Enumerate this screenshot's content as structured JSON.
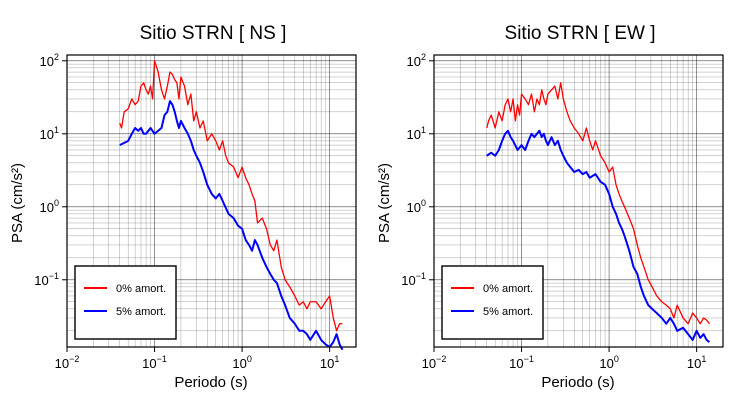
{
  "colors": {
    "series_0pct": "#ff0000",
    "series_5pct": "#0000ff",
    "grid": "#000000",
    "frame": "#000000"
  },
  "chart_data": [
    {
      "type": "line",
      "title": "Sitio STRN [ NS ]",
      "xlabel": "Periodo (s)",
      "ylabel": "PSA (cm/s²)",
      "xscale": "log",
      "yscale": "log",
      "xlim": [
        0.01,
        20
      ],
      "ylim": [
        0.012,
        120
      ],
      "grid": true,
      "legend_position": "bottom-left",
      "x_ticks": [
        {
          "base": "10",
          "exp": "−2",
          "value": 0.01
        },
        {
          "base": "10",
          "exp": "−1",
          "value": 0.1
        },
        {
          "base": "10",
          "exp": "0",
          "value": 1
        },
        {
          "base": "10",
          "exp": "1",
          "value": 10
        }
      ],
      "y_ticks": [
        {
          "base": "10",
          "exp": "−1",
          "value": 0.1
        },
        {
          "base": "10",
          "exp": "0",
          "value": 1
        },
        {
          "base": "10",
          "exp": "1",
          "value": 10
        },
        {
          "base": "10",
          "exp": "2",
          "value": 100
        }
      ],
      "series": [
        {
          "name": "0% amort.",
          "color": "#ff0000",
          "x": [
            0.04,
            0.042,
            0.045,
            0.05,
            0.055,
            0.06,
            0.065,
            0.07,
            0.075,
            0.08,
            0.085,
            0.09,
            0.095,
            0.1,
            0.11,
            0.12,
            0.13,
            0.14,
            0.15,
            0.16,
            0.17,
            0.18,
            0.19,
            0.2,
            0.22,
            0.24,
            0.26,
            0.28,
            0.3,
            0.33,
            0.36,
            0.4,
            0.45,
            0.5,
            0.55,
            0.6,
            0.65,
            0.7,
            0.8,
            0.9,
            1.0,
            1.1,
            1.2,
            1.3,
            1.4,
            1.5,
            1.7,
            1.9,
            2.1,
            2.3,
            2.5,
            2.8,
            3.1,
            3.5,
            4.0,
            4.5,
            5.0,
            5.5,
            6.0,
            7.0,
            8.0,
            9.0,
            10.0,
            11.0,
            12.0,
            13.0,
            14.0
          ],
          "y": [
            14,
            12,
            20,
            22,
            30,
            25,
            28,
            45,
            50,
            40,
            35,
            45,
            30,
            100,
            70,
            40,
            30,
            45,
            70,
            65,
            55,
            50,
            30,
            60,
            45,
            25,
            35,
            15,
            20,
            12,
            15,
            8,
            10,
            8,
            6,
            8,
            5,
            4,
            3.5,
            2.5,
            3.5,
            2.5,
            2,
            1.5,
            1.2,
            0.6,
            0.7,
            0.5,
            0.3,
            0.25,
            0.35,
            0.15,
            0.1,
            0.08,
            0.06,
            0.045,
            0.05,
            0.04,
            0.05,
            0.05,
            0.04,
            0.05,
            0.06,
            0.03,
            0.02,
            0.025,
            0.025
          ]
        },
        {
          "name": "5% amort.",
          "color": "#0000ff",
          "x": [
            0.04,
            0.045,
            0.05,
            0.055,
            0.06,
            0.065,
            0.07,
            0.075,
            0.08,
            0.09,
            0.1,
            0.11,
            0.12,
            0.13,
            0.14,
            0.15,
            0.16,
            0.17,
            0.18,
            0.19,
            0.2,
            0.22,
            0.24,
            0.26,
            0.28,
            0.3,
            0.33,
            0.36,
            0.4,
            0.45,
            0.5,
            0.55,
            0.6,
            0.7,
            0.8,
            0.9,
            1.0,
            1.1,
            1.2,
            1.3,
            1.4,
            1.5,
            1.7,
            1.9,
            2.1,
            2.3,
            2.5,
            2.8,
            3.1,
            3.5,
            4.0,
            4.5,
            5.0,
            5.5,
            6.0,
            7.0,
            8.0,
            9.0,
            10.0,
            11.0,
            12.0,
            13.0,
            14.0
          ],
          "y": [
            7,
            7.5,
            8,
            10,
            12,
            11,
            12,
            10,
            10,
            12,
            10,
            11,
            12,
            18,
            20,
            28,
            25,
            20,
            15,
            12,
            15,
            12,
            10,
            8,
            6,
            5,
            4,
            3,
            2,
            1.5,
            1.3,
            1.5,
            1.2,
            0.8,
            0.7,
            0.55,
            0.5,
            0.35,
            0.3,
            0.25,
            0.35,
            0.3,
            0.2,
            0.15,
            0.12,
            0.1,
            0.09,
            0.06,
            0.045,
            0.03,
            0.025,
            0.02,
            0.02,
            0.018,
            0.015,
            0.02,
            0.015,
            0.013,
            0.012,
            0.014,
            0.018,
            0.013,
            0.011
          ]
        }
      ]
    },
    {
      "type": "line",
      "title": "Sitio STRN [ EW ]",
      "xlabel": "Periodo (s)",
      "ylabel": "PSA (cm/s²)",
      "xscale": "log",
      "yscale": "log",
      "xlim": [
        0.01,
        20
      ],
      "ylim": [
        0.012,
        120
      ],
      "grid": true,
      "legend_position": "bottom-left",
      "x_ticks": [
        {
          "base": "10",
          "exp": "−2",
          "value": 0.01
        },
        {
          "base": "10",
          "exp": "−1",
          "value": 0.1
        },
        {
          "base": "10",
          "exp": "0",
          "value": 1
        },
        {
          "base": "10",
          "exp": "1",
          "value": 10
        }
      ],
      "y_ticks": [
        {
          "base": "10",
          "exp": "−1",
          "value": 0.1
        },
        {
          "base": "10",
          "exp": "0",
          "value": 1
        },
        {
          "base": "10",
          "exp": "1",
          "value": 10
        },
        {
          "base": "10",
          "exp": "2",
          "value": 100
        }
      ],
      "series": [
        {
          "name": "0% amort.",
          "color": "#ff0000",
          "x": [
            0.04,
            0.042,
            0.045,
            0.05,
            0.055,
            0.06,
            0.065,
            0.07,
            0.075,
            0.08,
            0.085,
            0.09,
            0.095,
            0.1,
            0.11,
            0.12,
            0.13,
            0.14,
            0.15,
            0.16,
            0.17,
            0.18,
            0.19,
            0.2,
            0.22,
            0.24,
            0.26,
            0.28,
            0.3,
            0.33,
            0.36,
            0.4,
            0.45,
            0.5,
            0.55,
            0.6,
            0.65,
            0.7,
            0.8,
            0.9,
            1.0,
            1.1,
            1.2,
            1.3,
            1.4,
            1.5,
            1.7,
            1.9,
            2.1,
            2.3,
            2.5,
            2.8,
            3.1,
            3.5,
            4.0,
            4.5,
            5.0,
            5.5,
            6.0,
            7.0,
            8.0,
            9.0,
            10.0,
            11.0,
            12.0,
            13.0,
            14.0
          ],
          "y": [
            12,
            15,
            18,
            12,
            20,
            15,
            25,
            30,
            20,
            30,
            15,
            25,
            18,
            35,
            30,
            25,
            35,
            20,
            30,
            25,
            40,
            30,
            25,
            35,
            40,
            45,
            30,
            50,
            30,
            20,
            15,
            12,
            10,
            8,
            12,
            8,
            6,
            8,
            5,
            4,
            3,
            3.5,
            2,
            1.5,
            1.2,
            1,
            0.7,
            0.5,
            0.3,
            0.2,
            0.15,
            0.1,
            0.08,
            0.06,
            0.05,
            0.045,
            0.04,
            0.03,
            0.045,
            0.03,
            0.025,
            0.035,
            0.03,
            0.025,
            0.03,
            0.028,
            0.025
          ]
        },
        {
          "name": "5% amort.",
          "color": "#0000ff",
          "x": [
            0.04,
            0.045,
            0.05,
            0.055,
            0.06,
            0.065,
            0.07,
            0.075,
            0.08,
            0.09,
            0.1,
            0.11,
            0.12,
            0.13,
            0.14,
            0.15,
            0.16,
            0.17,
            0.18,
            0.19,
            0.2,
            0.22,
            0.24,
            0.26,
            0.28,
            0.3,
            0.33,
            0.36,
            0.4,
            0.45,
            0.5,
            0.55,
            0.6,
            0.7,
            0.8,
            0.9,
            1.0,
            1.1,
            1.2,
            1.3,
            1.4,
            1.5,
            1.7,
            1.9,
            2.1,
            2.3,
            2.5,
            2.8,
            3.1,
            3.5,
            4.0,
            4.5,
            5.0,
            5.5,
            6.0,
            7.0,
            8.0,
            9.0,
            10.0,
            11.0,
            12.0,
            13.0,
            14.0
          ],
          "y": [
            5,
            5.5,
            5,
            6,
            8,
            10,
            11,
            9,
            8,
            6,
            7,
            6,
            8,
            10,
            9,
            10,
            11,
            9,
            10,
            8,
            7,
            9,
            7,
            8,
            6,
            5,
            4,
            3.5,
            3,
            3.2,
            2.8,
            3,
            2.5,
            2.8,
            2.2,
            2,
            1.5,
            1,
            0.8,
            0.6,
            0.5,
            0.4,
            0.25,
            0.15,
            0.12,
            0.08,
            0.06,
            0.045,
            0.04,
            0.035,
            0.03,
            0.025,
            0.03,
            0.025,
            0.02,
            0.022,
            0.018,
            0.015,
            0.02,
            0.016,
            0.018,
            0.015,
            0.014
          ]
        }
      ]
    }
  ]
}
